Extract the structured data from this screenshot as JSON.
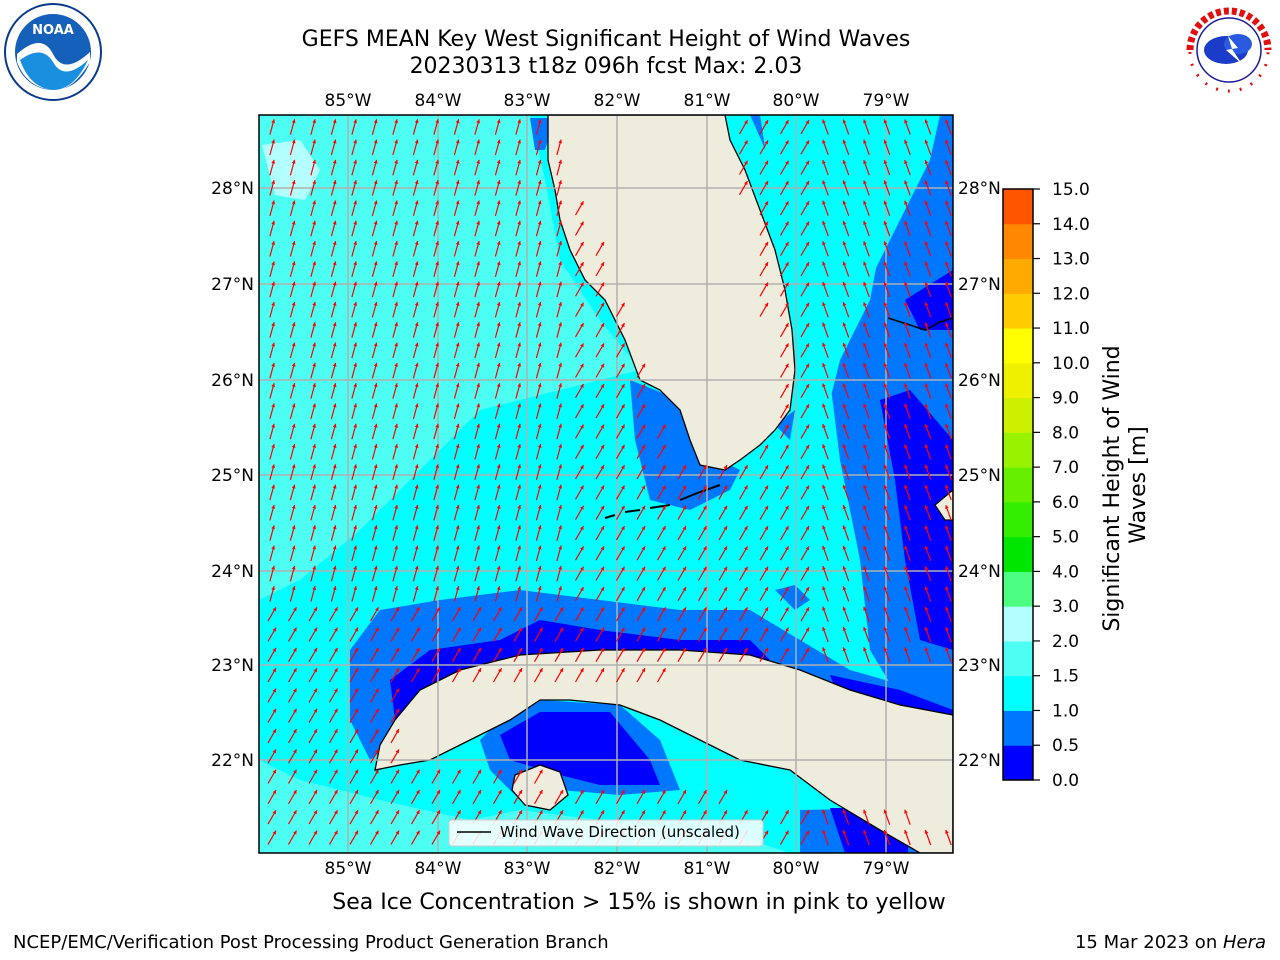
{
  "title": {
    "line1": "GEFS MEAN Key West Significant Height of Wind Waves",
    "line2": "20230313 t18z 096h fcst   Max: 2.03"
  },
  "map": {
    "lon_ticks": [
      "85°W",
      "84°W",
      "83°W",
      "82°W",
      "81°W",
      "80°W",
      "79°W"
    ],
    "lat_ticks": [
      "28°N",
      "27°N",
      "26°N",
      "25°N",
      "24°N",
      "23°N",
      "22°N"
    ],
    "legend_label": "Wind Wave Direction (unscaled)",
    "colors": {
      "land": "#eeecdc",
      "band_0_0p5": "#0000ff",
      "band_0p5_1": "#0077ff",
      "band_1_1p5": "#00ffff",
      "band_1p5_2": "#4dfff2",
      "band_2_3": "#b3ffff",
      "arrow": "#ff0000",
      "grid": "#b0b0b0"
    },
    "icons": [
      "noaa-logo-icon",
      "nws-logo-icon"
    ]
  },
  "colorbar": {
    "label": "Significant Height of Wind Waves [m]",
    "ticks": [
      "15.0",
      "14.0",
      "13.0",
      "12.0",
      "11.0",
      "10.0",
      "9.0",
      "8.0",
      "7.0",
      "6.0",
      "5.0",
      "4.0",
      "3.0",
      "2.0",
      "1.5",
      "1.0",
      "0.5",
      "0.0"
    ],
    "colors": [
      "#0000ff",
      "#0077ff",
      "#00ffff",
      "#4dfff2",
      "#b3ffff",
      "#4dff80",
      "#00e600",
      "#33ee00",
      "#66f000",
      "#99f200",
      "#ccf000",
      "#eef000",
      "#ffff00",
      "#ffcc00",
      "#ffaa00",
      "#ff8800",
      "#ff5500",
      "#ff2200",
      "#ff0000"
    ]
  },
  "ice_note": "Sea Ice Concentration > 15% is shown in pink to yellow",
  "footer": {
    "left": "NCEP/EMC/Verification Post Processing Product Generation Branch",
    "right_date": "15 Mar 2023 on ",
    "right_host": "Hera"
  }
}
